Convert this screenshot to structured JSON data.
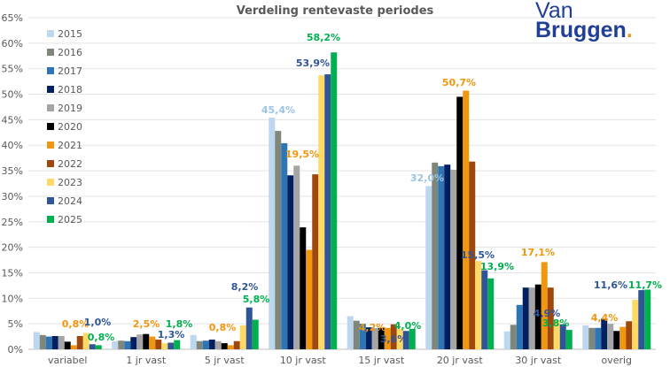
{
  "chart_data": {
    "type": "bar",
    "title": "Verdeling rentevaste periodes",
    "xlabel": "",
    "ylabel": "",
    "ylim": [
      0,
      65
    ],
    "yticks": [
      "0%",
      "5%",
      "10%",
      "15%",
      "20%",
      "25%",
      "30%",
      "35%",
      "40%",
      "45%",
      "50%",
      "55%",
      "60%",
      "65%"
    ],
    "grid": true,
    "legend_placement": "top-left inside",
    "categories": [
      "variabel",
      "1 jr vast",
      "5 jr vast",
      "10 jr vast",
      "15 jr vast",
      "20 jr vast",
      "30 jr vast",
      "overig"
    ],
    "series": [
      {
        "name": "2015",
        "color": "#bdd7ee",
        "values": [
          3.4,
          1.6,
          2.8,
          45.4,
          6.5,
          32.0,
          3.5,
          4.7
        ]
      },
      {
        "name": "2016",
        "color": "#7f877a",
        "values": [
          2.8,
          1.7,
          1.6,
          42.8,
          5.6,
          36.6,
          4.8,
          4.2
        ]
      },
      {
        "name": "2017",
        "color": "#2e75b6",
        "values": [
          2.5,
          1.6,
          1.7,
          40.4,
          5.0,
          35.9,
          8.7,
          4.2
        ]
      },
      {
        "name": "2018",
        "color": "#002060",
        "values": [
          2.6,
          2.4,
          1.9,
          34.1,
          4.3,
          36.2,
          12.1,
          6.0
        ]
      },
      {
        "name": "2019",
        "color": "#a5a5a5",
        "values": [
          2.6,
          2.9,
          1.6,
          36.0,
          4.2,
          35.2,
          12.1,
          5.0
        ]
      },
      {
        "name": "2020",
        "color": "#000000",
        "values": [
          1.5,
          3.0,
          1.2,
          23.9,
          4.2,
          49.5,
          12.7,
          3.6
        ]
      },
      {
        "name": "2021",
        "color": "#f0960f",
        "values": [
          0.8,
          2.5,
          0.8,
          19.5,
          4.2,
          50.7,
          17.1,
          4.4
        ]
      },
      {
        "name": "2022",
        "color": "#9e480e",
        "values": [
          2.6,
          1.9,
          1.6,
          34.3,
          4.9,
          36.8,
          12.1,
          5.5
        ]
      },
      {
        "name": "2023",
        "color": "#ffd966",
        "values": [
          3.2,
          1.2,
          4.7,
          53.7,
          4.0,
          17.3,
          5.6,
          9.7
        ]
      },
      {
        "name": "2024",
        "color": "#2f5597",
        "values": [
          1.0,
          1.3,
          8.2,
          53.9,
          3.6,
          15.5,
          4.9,
          11.6
        ]
      },
      {
        "name": "2025",
        "color": "#00b050",
        "values": [
          0.8,
          1.8,
          5.8,
          58.2,
          4.0,
          13.9,
          3.8,
          11.7
        ]
      }
    ],
    "data_labels": [
      {
        "category": "variabel",
        "series": "2021",
        "text": "0,8%"
      },
      {
        "category": "variabel",
        "series": "2024",
        "text": "1,0%"
      },
      {
        "category": "variabel",
        "series": "2025",
        "text": "0,8%"
      },
      {
        "category": "1 jr vast",
        "series": "2021",
        "text": "2,5%"
      },
      {
        "category": "1 jr vast",
        "series": "2024",
        "text": "1,3%"
      },
      {
        "category": "1 jr vast",
        "series": "2025",
        "text": "1,8%"
      },
      {
        "category": "5 jr vast",
        "series": "2021",
        "text": "0,8%"
      },
      {
        "category": "5 jr vast",
        "series": "2024",
        "text": "8,2%"
      },
      {
        "category": "5 jr vast",
        "series": "2025",
        "text": "5,8%"
      },
      {
        "category": "10 jr vast",
        "series": "2015",
        "text": "45,4%"
      },
      {
        "category": "10 jr vast",
        "series": "2021",
        "text": "19,5%"
      },
      {
        "category": "10 jr vast",
        "series": "2024",
        "text": "53,9%"
      },
      {
        "category": "10 jr vast",
        "series": "2025",
        "text": "58,2%"
      },
      {
        "category": "15 jr vast",
        "series": "2021",
        "text": "4,2%"
      },
      {
        "category": "15 jr vast",
        "series": "2024",
        "text": "3,6%"
      },
      {
        "category": "15 jr vast",
        "series": "2025",
        "text": "4,0%"
      },
      {
        "category": "20 jr vast",
        "series": "2015",
        "text": "32,0%"
      },
      {
        "category": "20 jr vast",
        "series": "2021",
        "text": "50,7%"
      },
      {
        "category": "20 jr vast",
        "series": "2024",
        "text": "15,5%"
      },
      {
        "category": "20 jr vast",
        "series": "2025",
        "text": "13,9%"
      },
      {
        "category": "30 jr vast",
        "series": "2021",
        "text": "17,1%"
      },
      {
        "category": "30 jr vast",
        "series": "2024",
        "text": "4,9%"
      },
      {
        "category": "30 jr vast",
        "series": "2025",
        "text": "3,8%"
      },
      {
        "category": "overig",
        "series": "2021",
        "text": "4,4%"
      },
      {
        "category": "overig",
        "series": "2024",
        "text": "11,6%"
      },
      {
        "category": "overig",
        "series": "2025",
        "text": "11,7%"
      }
    ]
  },
  "logo": {
    "line1": "Van",
    "line2": "Bruggen",
    "dot": ".",
    "dot_color": "#f7941d",
    "color": "#1f3f99"
  }
}
